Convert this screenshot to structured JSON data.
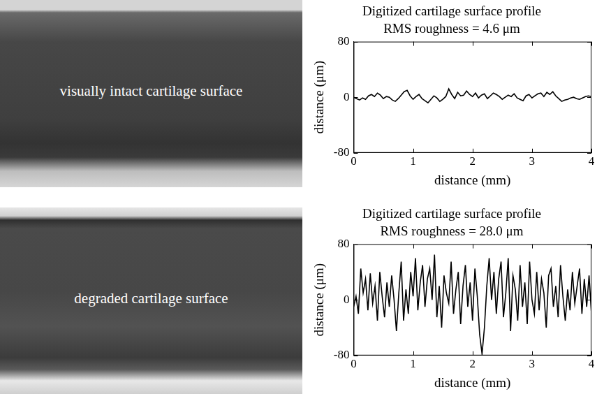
{
  "photos": [
    {
      "label": "visually intact cartilage surface"
    },
    {
      "label": "degraded cartilage surface"
    }
  ],
  "chart_data": [
    {
      "type": "line",
      "title": "Digitized cartilage surface profile",
      "subtitle": "RMS roughness = 4.6 μm",
      "x_label": "distance (mm)",
      "y_label": "distance (μm)",
      "color": "#000000",
      "grid": false,
      "xlim": [
        0,
        4
      ],
      "xticks": [
        0,
        1,
        2,
        3,
        4
      ],
      "ylim": [
        -80,
        80
      ],
      "yticks": [
        -80,
        0,
        80
      ],
      "x": [
        0,
        0.05,
        0.1,
        0.15,
        0.2,
        0.25,
        0.3,
        0.35,
        0.4,
        0.45,
        0.5,
        0.55,
        0.6,
        0.65,
        0.7,
        0.75,
        0.8,
        0.85,
        0.9,
        0.95,
        1,
        1.05,
        1.1,
        1.15,
        1.2,
        1.25,
        1.3,
        1.35,
        1.4,
        1.45,
        1.5,
        1.55,
        1.6,
        1.65,
        1.7,
        1.75,
        1.8,
        1.85,
        1.9,
        1.95,
        2,
        2.05,
        2.1,
        2.15,
        2.2,
        2.25,
        2.3,
        2.35,
        2.4,
        2.45,
        2.5,
        2.55,
        2.6,
        2.65,
        2.7,
        2.75,
        2.8,
        2.85,
        2.9,
        2.95,
        3,
        3.05,
        3.1,
        3.15,
        3.2,
        3.25,
        3.3,
        3.35,
        3.4,
        3.45,
        3.5,
        3.55,
        3.6,
        3.65,
        3.7,
        3.75,
        3.8,
        3.85,
        3.9,
        3.95,
        4
      ],
      "values": [
        0,
        -2,
        -4,
        -1,
        -3,
        2,
        4,
        1,
        6,
        3,
        -2,
        1,
        0,
        -4,
        -6,
        -2,
        3,
        8,
        10,
        2,
        -3,
        1,
        4,
        -2,
        -5,
        -8,
        -3,
        2,
        -1,
        -6,
        -3,
        1,
        12,
        4,
        -2,
        7,
        2,
        3,
        9,
        4,
        1,
        6,
        -1,
        3,
        5,
        -2,
        2,
        6,
        4,
        1,
        -3,
        0,
        3,
        1,
        5,
        -1,
        -3,
        -5,
        2,
        4,
        -1,
        2,
        5,
        6,
        1,
        7,
        4,
        8,
        2,
        -2,
        -6,
        -4,
        -3,
        -1,
        0,
        -2,
        -3,
        -1,
        1,
        2,
        1
      ]
    },
    {
      "type": "line",
      "title": "Digitized cartilage surface profile",
      "subtitle": "RMS roughness = 28.0 μm",
      "x_label": "distance (mm)",
      "y_label": "distance (μm)",
      "color": "#000000",
      "grid": false,
      "xlim": [
        0,
        4
      ],
      "xticks": [
        0,
        1,
        2,
        3,
        4
      ],
      "ylim": [
        -80,
        80
      ],
      "yticks": [
        -80,
        0,
        80
      ],
      "x": [
        0,
        0.04,
        0.08,
        0.12,
        0.16,
        0.2,
        0.24,
        0.28,
        0.32,
        0.36,
        0.4,
        0.44,
        0.48,
        0.52,
        0.56,
        0.6,
        0.64,
        0.68,
        0.72,
        0.76,
        0.8,
        0.84,
        0.88,
        0.92,
        0.96,
        1,
        1.04,
        1.08,
        1.12,
        1.16,
        1.2,
        1.24,
        1.28,
        1.32,
        1.36,
        1.4,
        1.44,
        1.48,
        1.52,
        1.56,
        1.6,
        1.64,
        1.68,
        1.72,
        1.76,
        1.8,
        1.84,
        1.88,
        1.92,
        1.96,
        2,
        2.04,
        2.08,
        2.12,
        2.16,
        2.2,
        2.24,
        2.28,
        2.32,
        2.36,
        2.4,
        2.44,
        2.48,
        2.52,
        2.56,
        2.6,
        2.64,
        2.68,
        2.72,
        2.76,
        2.8,
        2.84,
        2.88,
        2.92,
        2.96,
        3,
        3.04,
        3.08,
        3.12,
        3.16,
        3.2,
        3.24,
        3.28,
        3.32,
        3.36,
        3.4,
        3.44,
        3.48,
        3.52,
        3.56,
        3.6,
        3.64,
        3.68,
        3.72,
        3.76,
        3.8,
        3.84,
        3.88,
        3.92,
        3.96,
        4
      ],
      "values": [
        -10,
        5,
        -20,
        45,
        10,
        30,
        -15,
        38,
        -5,
        20,
        -30,
        40,
        5,
        -25,
        25,
        -10,
        35,
        0,
        -45,
        10,
        55,
        -30,
        15,
        -20,
        40,
        5,
        60,
        -15,
        25,
        50,
        -10,
        30,
        45,
        0,
        65,
        -25,
        20,
        -40,
        35,
        10,
        -5,
        55,
        -20,
        15,
        40,
        -35,
        20,
        50,
        -10,
        25,
        -30,
        45,
        5,
        -50,
        -78,
        -40,
        20,
        60,
        0,
        40,
        -20,
        30,
        55,
        -25,
        10,
        60,
        -45,
        35,
        15,
        -30,
        50,
        -10,
        25,
        -35,
        55,
        0,
        -20,
        40,
        -15,
        30,
        10,
        -40,
        35,
        45,
        -10,
        20,
        -25,
        50,
        5,
        -30,
        15,
        -15,
        40,
        -5,
        20,
        45,
        -20,
        30,
        -10,
        35,
        -20
      ]
    }
  ]
}
